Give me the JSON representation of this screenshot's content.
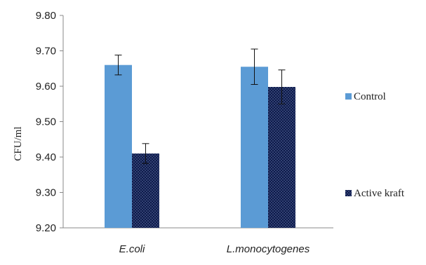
{
  "chart_data": {
    "type": "bar",
    "title": "",
    "xlabel": "",
    "ylabel": "CFU/ml",
    "ylim": [
      9.2,
      9.8
    ],
    "yticks": [
      9.2,
      9.3,
      9.4,
      9.5,
      9.6,
      9.7,
      9.8
    ],
    "ytick_labels": [
      "9.20",
      "9.30",
      "9.40",
      "9.50",
      "9.60",
      "9.70",
      "9.80"
    ],
    "categories": [
      "E.coli",
      "L.monocytogenes"
    ],
    "series": [
      {
        "name": "Control",
        "color": "#5b9bd5",
        "values": [
          9.66,
          9.655
        ],
        "errors": [
          0.028,
          0.05
        ]
      },
      {
        "name": "Active kraft",
        "color": "#0d1a4a",
        "values": [
          9.41,
          9.598
        ],
        "errors": [
          0.028,
          0.048
        ]
      }
    ],
    "legend_position": "right",
    "grid": false,
    "error_bars": true
  }
}
